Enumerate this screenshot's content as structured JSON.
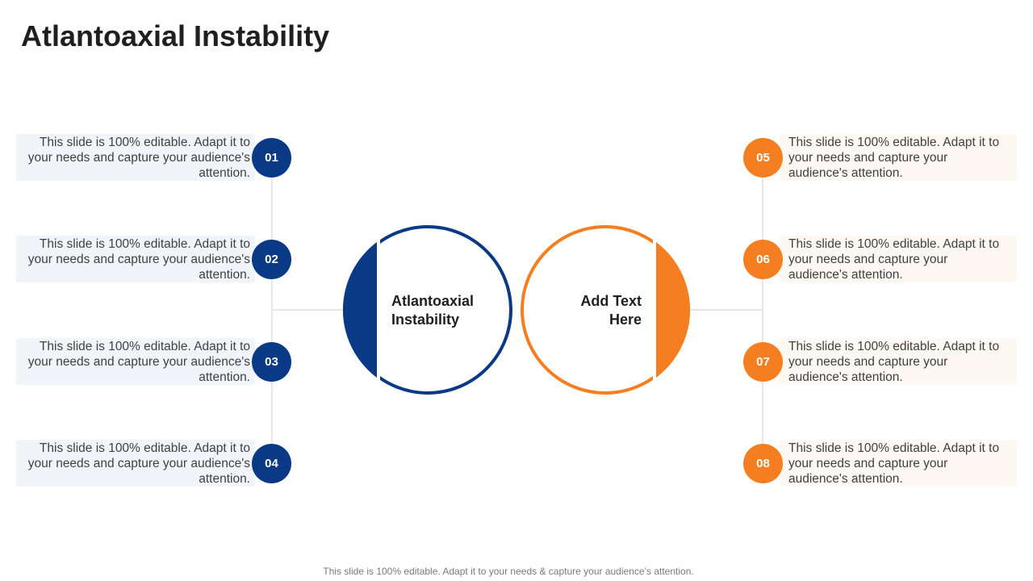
{
  "title": "Atlantoaxial Instability",
  "colors": {
    "blue": "#0a3a85",
    "orange": "#f57f20",
    "connector": "#d9d9d9"
  },
  "center": {
    "left_label": "Atlantoaxial Instability",
    "right_label": "Add Text Here"
  },
  "left_items": [
    {
      "number": "01",
      "text": "This slide is 100% editable. Adapt it to your needs and capture your audience's attention."
    },
    {
      "number": "02",
      "text": "This slide is 100% editable. Adapt it to your needs and capture your audience's attention."
    },
    {
      "number": "03",
      "text": "This slide is 100% editable. Adapt it to your needs and capture your audience's attention."
    },
    {
      "number": "04",
      "text": "This slide is 100% editable. Adapt it to your needs and capture your audience's attention."
    }
  ],
  "right_items": [
    {
      "number": "05",
      "text": "This slide is 100% editable. Adapt it to your needs and capture your audience's attention."
    },
    {
      "number": "06",
      "text": "This slide is 100% editable. Adapt it to your needs and capture your audience's attention."
    },
    {
      "number": "07",
      "text": "This slide is 100% editable. Adapt it to your needs and capture your audience's attention."
    },
    {
      "number": "08",
      "text": "This slide is 100% editable. Adapt it to your needs and capture your audience's attention."
    }
  ],
  "footer": "This slide is 100% editable. Adapt it to your needs & capture your audience’s attention."
}
